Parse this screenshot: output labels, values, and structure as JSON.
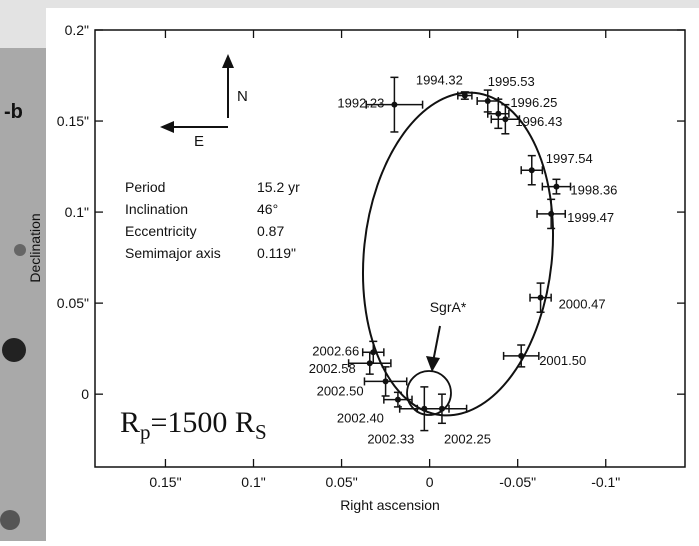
{
  "background_label": "-b",
  "chart_data": {
    "type": "scatter",
    "x_label": "Right ascension",
    "y_label": "Declination",
    "xlim": [
      0.19,
      -0.145
    ],
    "ylim": [
      -0.04,
      0.2
    ],
    "xticks": [
      {
        "value": 0.15,
        "label": "0.15\""
      },
      {
        "value": 0.1,
        "label": "0.1\""
      },
      {
        "value": 0.05,
        "label": "0.05\""
      },
      {
        "value": 0,
        "label": "0"
      },
      {
        "value": -0.05,
        "label": "-0.05\""
      },
      {
        "value": -0.1,
        "label": "-0.1\""
      }
    ],
    "yticks": [
      {
        "value": 0,
        "label": "0"
      },
      {
        "value": 0.05,
        "label": "0.05\""
      },
      {
        "value": 0.1,
        "label": "0.1\""
      },
      {
        "value": 0.15,
        "label": "0.15\""
      },
      {
        "value": 0.2,
        "label": "0.2\""
      }
    ],
    "color": "#111111",
    "series": [
      {
        "labels": [
          "1992.23",
          "1994.32",
          "1995.53",
          "1996.25",
          "1996.43",
          "1997.54",
          "1998.36",
          "1999.47",
          "2000.47",
          "2001.50",
          "2002.66",
          "2002.58",
          "2002.50",
          "2002.40",
          "2002.33",
          "2002.25"
        ],
        "x": [
          0.02,
          -0.02,
          -0.033,
          -0.039,
          -0.043,
          -0.058,
          -0.072,
          -0.069,
          -0.063,
          -0.052,
          0.032,
          0.034,
          0.025,
          0.018,
          0.003,
          -0.007
        ],
        "values": [
          0.159,
          0.164,
          0.161,
          0.154,
          0.151,
          0.123,
          0.114,
          0.099,
          0.053,
          0.021,
          0.023,
          0.017,
          0.007,
          -0.003,
          -0.008,
          -0.008
        ],
        "xerr": [
          0.016,
          0.004,
          0.006,
          0.006,
          0.008,
          0.006,
          0.008,
          0.008,
          0.006,
          0.01,
          0.006,
          0.012,
          0.012,
          0.008,
          0.014,
          0.014
        ],
        "yerr": [
          0.015,
          0.002,
          0.006,
          0.008,
          0.008,
          0.008,
          0.004,
          0.008,
          0.008,
          0.006,
          0.006,
          0.006,
          0.008,
          0.004,
          0.012,
          0.008
        ]
      }
    ],
    "compass": {
      "north": "N",
      "east": "E"
    },
    "parameters": [
      {
        "label": "Period",
        "value": "15.2 yr"
      },
      {
        "label": "Inclination",
        "value": "46°"
      },
      {
        "label": "Eccentricity",
        "value": "0.87"
      },
      {
        "label": "Semimajor axis",
        "value": "0.119\""
      }
    ],
    "center_label": "SgrA*",
    "annotation": [
      "R",
      "p",
      "=1500 R",
      "S"
    ]
  }
}
